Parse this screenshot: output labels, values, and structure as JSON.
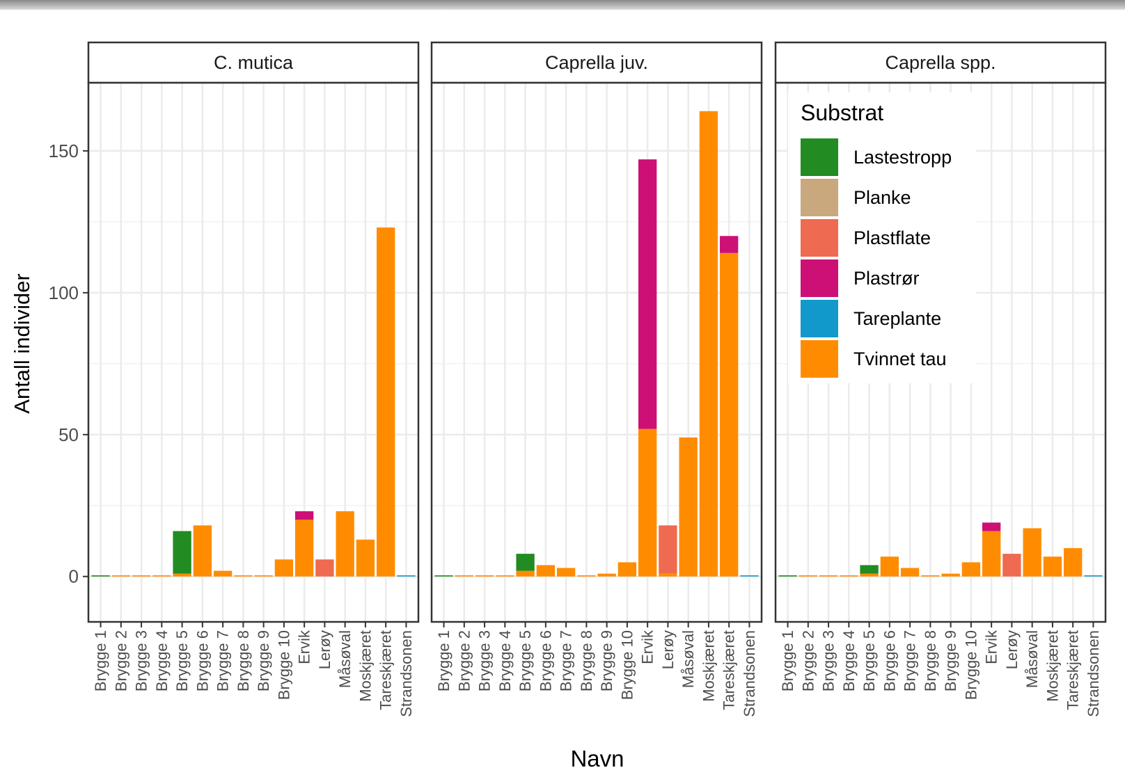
{
  "chart_data": {
    "type": "bar",
    "stacked": true,
    "xlabel": "Navn",
    "ylabel": "Antall individer",
    "ylim": [
      -16,
      174
    ],
    "yticks": [
      0,
      50,
      100,
      150
    ],
    "grid": true,
    "legend_position": "top-right (inside third panel)",
    "legend_title": "Substrat",
    "categories": [
      "Brygge 1",
      "Brygge 2",
      "Brygge 3",
      "Brygge 4",
      "Brygge 5",
      "Brygge 6",
      "Brygge 7",
      "Brygge 8",
      "Brygge 9",
      "Brygge 10",
      "Ervik",
      "Lerøy",
      "Måsøval",
      "Moskjæret",
      "Tareskjæret",
      "Strandsonen"
    ],
    "substrates": [
      {
        "name": "Lastestropp",
        "color": "#228B22"
      },
      {
        "name": "Planke",
        "color": "#C8A87C"
      },
      {
        "name": "Plastflate",
        "color": "#EE6A50"
      },
      {
        "name": "Plastrør",
        "color": "#CD1076"
      },
      {
        "name": "Tareplante",
        "color": "#1199CC"
      },
      {
        "name": "Tvinnet tau",
        "color": "#FF8C00"
      }
    ],
    "panels": [
      {
        "title": "C. mutica",
        "bars": [
          {
            "category": "Brygge 1",
            "segments": [
              {
                "substrate": "Lastestropp",
                "value": 0.4
              }
            ]
          },
          {
            "category": "Brygge 2",
            "segments": [
              {
                "substrate": "Tvinnet tau",
                "value": 0.4
              }
            ]
          },
          {
            "category": "Brygge 3",
            "segments": [
              {
                "substrate": "Tvinnet tau",
                "value": 0.4
              }
            ]
          },
          {
            "category": "Brygge 4",
            "segments": [
              {
                "substrate": "Tvinnet tau",
                "value": 0.4
              }
            ]
          },
          {
            "category": "Brygge 5",
            "segments": [
              {
                "substrate": "Tvinnet tau",
                "value": 1
              },
              {
                "substrate": "Lastestropp",
                "value": 15
              }
            ]
          },
          {
            "category": "Brygge 6",
            "segments": [
              {
                "substrate": "Tvinnet tau",
                "value": 18
              }
            ]
          },
          {
            "category": "Brygge 7",
            "segments": [
              {
                "substrate": "Tvinnet tau",
                "value": 2
              }
            ]
          },
          {
            "category": "Brygge 8",
            "segments": [
              {
                "substrate": "Tvinnet tau",
                "value": 0.4
              }
            ]
          },
          {
            "category": "Brygge 9",
            "segments": [
              {
                "substrate": "Tvinnet tau",
                "value": 0.4
              }
            ]
          },
          {
            "category": "Brygge 10",
            "segments": [
              {
                "substrate": "Tvinnet tau",
                "value": 6
              }
            ]
          },
          {
            "category": "Ervik",
            "segments": [
              {
                "substrate": "Tvinnet tau",
                "value": 20
              },
              {
                "substrate": "Plastrør",
                "value": 3
              }
            ]
          },
          {
            "category": "Lerøy",
            "segments": [
              {
                "substrate": "Plastflate",
                "value": 6
              }
            ]
          },
          {
            "category": "Måsøval",
            "segments": [
              {
                "substrate": "Tvinnet tau",
                "value": 23
              }
            ]
          },
          {
            "category": "Moskjæret",
            "segments": [
              {
                "substrate": "Tvinnet tau",
                "value": 13
              }
            ]
          },
          {
            "category": "Tareskjæret",
            "segments": [
              {
                "substrate": "Tvinnet tau",
                "value": 123
              }
            ]
          },
          {
            "category": "Strandsonen",
            "segments": [
              {
                "substrate": "Tareplante",
                "value": 0.4
              }
            ]
          }
        ]
      },
      {
        "title": "Caprella juv.",
        "bars": [
          {
            "category": "Brygge 1",
            "segments": [
              {
                "substrate": "Lastestropp",
                "value": 0.4
              }
            ]
          },
          {
            "category": "Brygge 2",
            "segments": [
              {
                "substrate": "Tvinnet tau",
                "value": 0.4
              }
            ]
          },
          {
            "category": "Brygge 3",
            "segments": [
              {
                "substrate": "Tvinnet tau",
                "value": 0.4
              }
            ]
          },
          {
            "category": "Brygge 4",
            "segments": [
              {
                "substrate": "Tvinnet tau",
                "value": 0.4
              }
            ]
          },
          {
            "category": "Brygge 5",
            "segments": [
              {
                "substrate": "Tvinnet tau",
                "value": 2
              },
              {
                "substrate": "Lastestropp",
                "value": 6
              }
            ]
          },
          {
            "category": "Brygge 6",
            "segments": [
              {
                "substrate": "Tvinnet tau",
                "value": 4
              }
            ]
          },
          {
            "category": "Brygge 7",
            "segments": [
              {
                "substrate": "Tvinnet tau",
                "value": 3
              }
            ]
          },
          {
            "category": "Brygge 8",
            "segments": [
              {
                "substrate": "Tvinnet tau",
                "value": 0.4
              }
            ]
          },
          {
            "category": "Brygge 9",
            "segments": [
              {
                "substrate": "Tvinnet tau",
                "value": 1
              }
            ]
          },
          {
            "category": "Brygge 10",
            "segments": [
              {
                "substrate": "Tvinnet tau",
                "value": 5
              }
            ]
          },
          {
            "category": "Ervik",
            "segments": [
              {
                "substrate": "Tvinnet tau",
                "value": 52
              },
              {
                "substrate": "Plastrør",
                "value": 95
              }
            ]
          },
          {
            "category": "Lerøy",
            "segments": [
              {
                "substrate": "Tvinnet tau",
                "value": 1
              },
              {
                "substrate": "Plastflate",
                "value": 17
              }
            ]
          },
          {
            "category": "Måsøval",
            "segments": [
              {
                "substrate": "Tvinnet tau",
                "value": 49
              }
            ]
          },
          {
            "category": "Moskjæret",
            "segments": [
              {
                "substrate": "Tvinnet tau",
                "value": 164
              }
            ]
          },
          {
            "category": "Tareskjæret",
            "segments": [
              {
                "substrate": "Tvinnet tau",
                "value": 114
              },
              {
                "substrate": "Plastrør",
                "value": 6
              }
            ]
          },
          {
            "category": "Strandsonen",
            "segments": [
              {
                "substrate": "Tareplante",
                "value": 0.4
              }
            ]
          }
        ]
      },
      {
        "title": "Caprella spp.",
        "bars": [
          {
            "category": "Brygge 1",
            "segments": [
              {
                "substrate": "Lastestropp",
                "value": 0.4
              }
            ]
          },
          {
            "category": "Brygge 2",
            "segments": [
              {
                "substrate": "Tvinnet tau",
                "value": 0.4
              }
            ]
          },
          {
            "category": "Brygge 3",
            "segments": [
              {
                "substrate": "Tvinnet tau",
                "value": 0.4
              }
            ]
          },
          {
            "category": "Brygge 4",
            "segments": [
              {
                "substrate": "Tvinnet tau",
                "value": 0.4
              }
            ]
          },
          {
            "category": "Brygge 5",
            "segments": [
              {
                "substrate": "Tvinnet tau",
                "value": 1
              },
              {
                "substrate": "Lastestropp",
                "value": 3
              }
            ]
          },
          {
            "category": "Brygge 6",
            "segments": [
              {
                "substrate": "Tvinnet tau",
                "value": 7
              }
            ]
          },
          {
            "category": "Brygge 7",
            "segments": [
              {
                "substrate": "Tvinnet tau",
                "value": 3
              }
            ]
          },
          {
            "category": "Brygge 8",
            "segments": [
              {
                "substrate": "Tvinnet tau",
                "value": 0.4
              }
            ]
          },
          {
            "category": "Brygge 9",
            "segments": [
              {
                "substrate": "Tvinnet tau",
                "value": 1
              }
            ]
          },
          {
            "category": "Brygge 10",
            "segments": [
              {
                "substrate": "Tvinnet tau",
                "value": 5
              }
            ]
          },
          {
            "category": "Ervik",
            "segments": [
              {
                "substrate": "Tvinnet tau",
                "value": 16
              },
              {
                "substrate": "Plastrør",
                "value": 3
              }
            ]
          },
          {
            "category": "Lerøy",
            "segments": [
              {
                "substrate": "Plastflate",
                "value": 8
              }
            ]
          },
          {
            "category": "Måsøval",
            "segments": [
              {
                "substrate": "Tvinnet tau",
                "value": 17
              }
            ]
          },
          {
            "category": "Moskjæret",
            "segments": [
              {
                "substrate": "Tvinnet tau",
                "value": 7
              }
            ]
          },
          {
            "category": "Tareskjæret",
            "segments": [
              {
                "substrate": "Tvinnet tau",
                "value": 10
              }
            ]
          },
          {
            "category": "Strandsonen",
            "segments": [
              {
                "substrate": "Tareplante",
                "value": 0.4
              }
            ]
          }
        ]
      }
    ]
  }
}
